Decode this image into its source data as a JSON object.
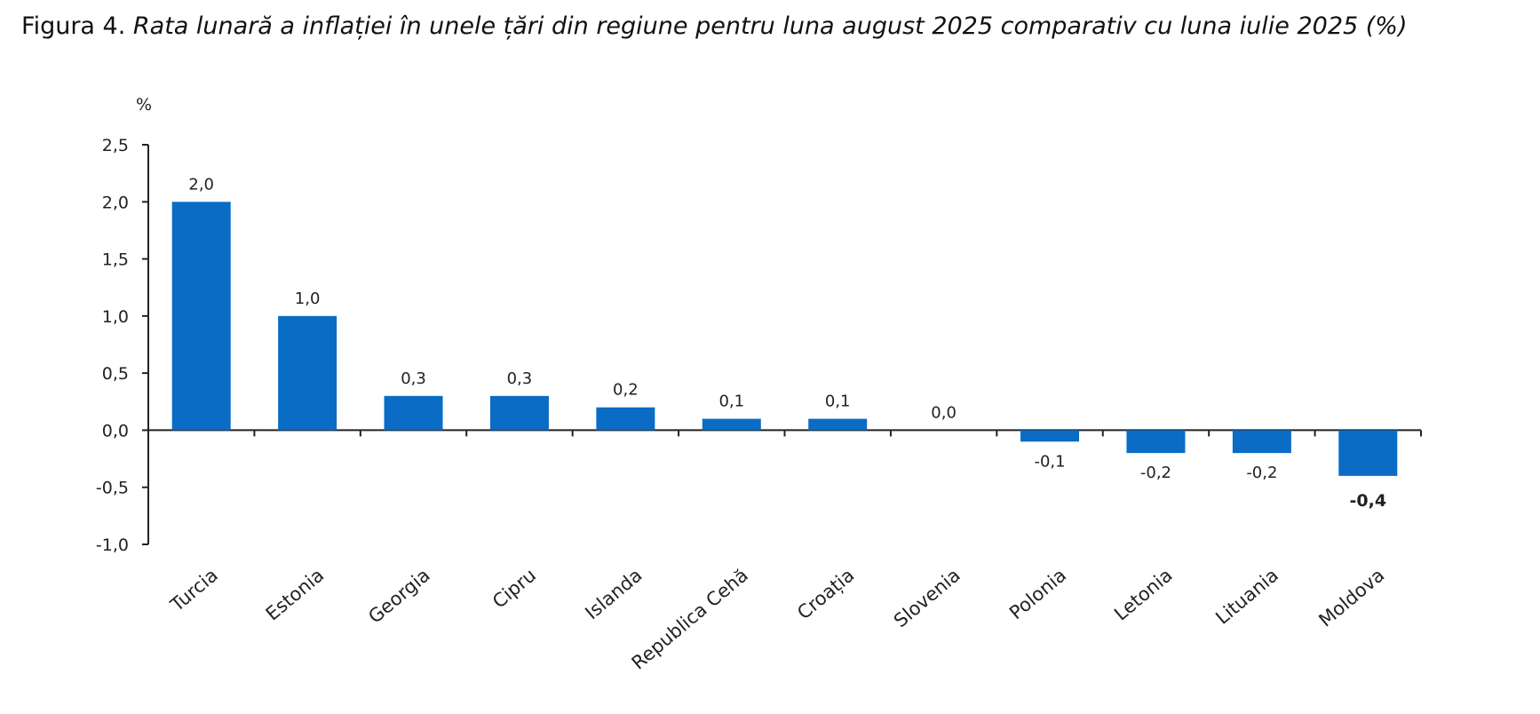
{
  "figure": {
    "label": "Figura 4",
    "separator": ". ",
    "text": "Rata lunară a inflației în unele țări din regiune pentru luna august 2025 comparativ cu luna iulie 2025 (%)"
  },
  "chart_data": {
    "type": "bar",
    "title": "Figura 4. Rata lunară a inflației în unele țări din regiune pentru luna august 2025 comparativ cu luna iulie 2025 (%)",
    "ylabel": "%",
    "xlabel": "",
    "ylim": [
      -1.0,
      2.5
    ],
    "yticks": [
      2.5,
      2.0,
      1.5,
      1.0,
      0.5,
      0.0,
      -0.5,
      -1.0
    ],
    "ytick_labels": [
      "2,5",
      "2,0",
      "1,5",
      "1,0",
      "0,5",
      "0,0",
      "-0,5",
      "-1,0"
    ],
    "grid": false,
    "legend": "none",
    "bar_color": "#0A6CC4",
    "categories": [
      "Turcia",
      "Estonia",
      "Georgia",
      "Cipru",
      "Islanda",
      "Republica Cehă",
      "Croația",
      "Slovenia",
      "Polonia",
      "Letonia",
      "Lituania",
      "Moldova"
    ],
    "values": [
      2.0,
      1.0,
      0.3,
      0.3,
      0.2,
      0.1,
      0.1,
      0.0,
      -0.1,
      -0.2,
      -0.2,
      -0.4
    ],
    "data_labels": [
      "2,0",
      "1,0",
      "0,3",
      "0,3",
      "0,2",
      "0,1",
      "0,1",
      "0,0",
      "-0,1",
      "-0,2",
      "-0,2",
      "-0,4"
    ],
    "highlight_category": "Moldova"
  }
}
